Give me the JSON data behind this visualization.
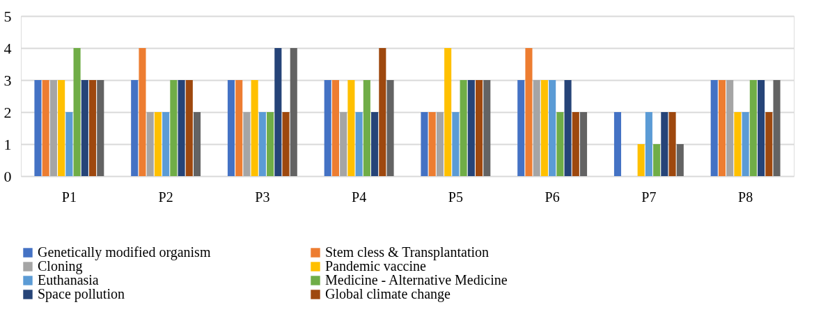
{
  "chart_data": {
    "type": "bar",
    "categories": [
      "P1",
      "P2",
      "P3",
      "P4",
      "P5",
      "P6",
      "P7",
      "P8"
    ],
    "series": [
      {
        "name": "Genetically modified organism",
        "color": "#4472c4",
        "values": [
          3,
          3,
          3,
          3,
          2,
          3,
          2,
          3
        ]
      },
      {
        "name": "Stem cless & Transplantation",
        "color": "#ed7d31",
        "values": [
          3,
          4,
          3,
          3,
          2,
          4,
          0,
          3
        ]
      },
      {
        "name": "Cloning",
        "color": "#a5a5a5",
        "values": [
          3,
          2,
          2,
          2,
          2,
          3,
          0,
          3
        ]
      },
      {
        "name": "Pandemic vaccine",
        "color": "#ffc000",
        "values": [
          3,
          2,
          3,
          3,
          4,
          3,
          1,
          2
        ]
      },
      {
        "name": "Euthanasia",
        "color": "#5b9bd5",
        "values": [
          2,
          2,
          2,
          2,
          2,
          3,
          2,
          2
        ]
      },
      {
        "name": "Medicine - Alternative Medicine",
        "color": "#70ad47",
        "values": [
          4,
          3,
          2,
          3,
          3,
          2,
          1,
          3
        ]
      },
      {
        "name": "Space pollution",
        "color": "#264478",
        "values": [
          3,
          3,
          4,
          2,
          3,
          3,
          2,
          3
        ]
      },
      {
        "name": "Global climate change",
        "color": "#9e480e",
        "values": [
          3,
          3,
          2,
          4,
          3,
          2,
          2,
          2
        ]
      },
      {
        "color": "#636363",
        "values": [
          3,
          2,
          4,
          3,
          3,
          2,
          1,
          3
        ]
      }
    ],
    "ylim": [
      0,
      5
    ],
    "yticks": [
      0,
      1,
      2,
      3,
      4,
      5
    ],
    "grid": "y",
    "legend": "bottom"
  }
}
